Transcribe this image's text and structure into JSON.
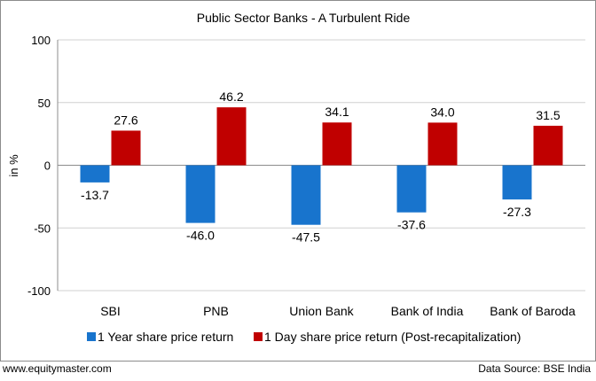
{
  "chart_data": {
    "type": "bar",
    "title": "Public Sector Banks - A Turbulent Ride",
    "xlabel": "",
    "ylabel": "in %",
    "ylim": [
      -100,
      100
    ],
    "yticks": [
      100,
      50,
      0,
      -50,
      -100
    ],
    "ytick_labels": [
      "100",
      "50",
      "0",
      "-50",
      "-100"
    ],
    "grid": true,
    "legend_position": "bottom",
    "categories": [
      "SBI",
      "PNB",
      "Union Bank",
      "Bank of India",
      "Bank of Baroda"
    ],
    "series": [
      {
        "name": "1 Year share price return",
        "color": "#1874cd",
        "values": [
          -13.7,
          -46.0,
          -47.5,
          -37.6,
          -27.3
        ],
        "labels": [
          "-13.7",
          "-46.0",
          "-47.5",
          "-37.6",
          "-27.3"
        ]
      },
      {
        "name": "1 Day share price return (Post-recapitalization)",
        "color": "#c00000",
        "values": [
          27.6,
          46.2,
          34.1,
          34.0,
          31.5
        ],
        "labels": [
          "27.6",
          "46.2",
          "34.1",
          "34.0",
          "31.5"
        ]
      }
    ]
  },
  "footer": {
    "left": "www.equitymaster.com",
    "right": "Data Source: BSE India"
  }
}
